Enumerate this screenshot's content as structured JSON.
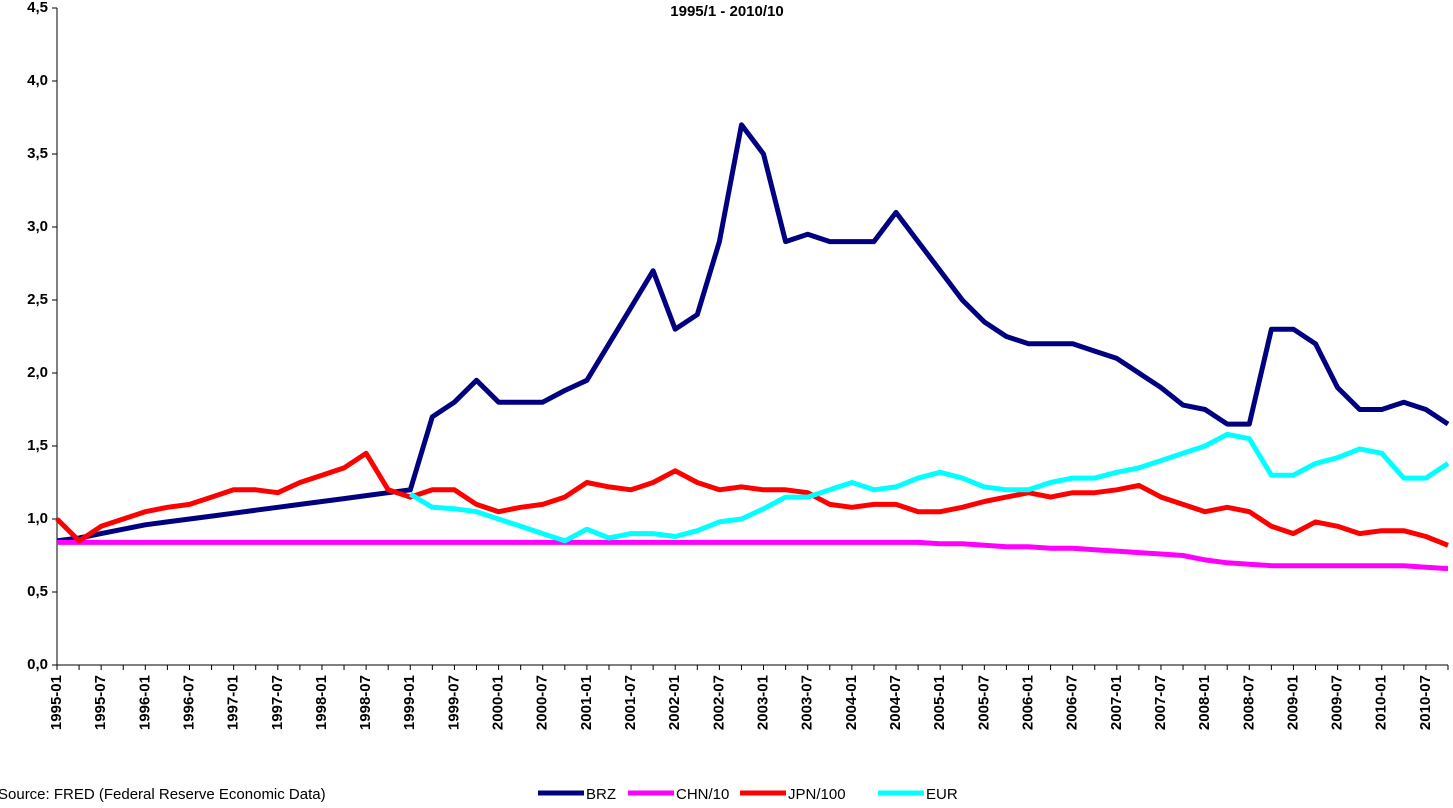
{
  "chart_data": {
    "type": "line",
    "title": "1995/1 - 2010/10",
    "source": "Source: FRED (Federal Reserve Economic Data)",
    "categories": [
      "1995-01",
      null,
      "1995-07",
      null,
      "1996-01",
      null,
      "1996-07",
      null,
      "1997-01",
      null,
      "1997-07",
      null,
      "1998-01",
      null,
      "1998-07",
      null,
      "1999-01",
      null,
      "1999-07",
      null,
      "2000-01",
      null,
      "2000-07",
      null,
      "2001-01",
      null,
      "2001-07",
      null,
      "2002-01",
      null,
      "2002-07",
      null,
      "2003-01",
      null,
      "2003-07",
      null,
      "2004-01",
      null,
      "2004-07",
      null,
      "2005-01",
      null,
      "2005-07",
      null,
      "2006-01",
      null,
      "2006-07",
      null,
      "2007-01",
      null,
      "2007-07",
      null,
      "2008-01",
      null,
      "2008-07",
      null,
      "2009-01",
      null,
      "2009-07",
      null,
      "2010-01",
      null,
      "2010-07",
      null
    ],
    "ylim": [
      0,
      4.5
    ],
    "yticks": [
      {
        "value": 0,
        "label": "0,0"
      },
      {
        "value": 0.5,
        "label": "0,5"
      },
      {
        "value": 1,
        "label": "1,0"
      },
      {
        "value": 1.5,
        "label": "1,5"
      },
      {
        "value": 2,
        "label": "2,0"
      },
      {
        "value": 2.5,
        "label": "2,5"
      },
      {
        "value": 3,
        "label": "3,0"
      },
      {
        "value": 3.5,
        "label": "3,5"
      },
      {
        "value": 4,
        "label": "4,0"
      },
      {
        "value": 4.5,
        "label": "4,5"
      }
    ],
    "series": [
      {
        "name": "BRZ",
        "color": "#000080",
        "values": [
          0.85,
          0.87,
          0.9,
          0.93,
          0.96,
          0.98,
          1.0,
          1.02,
          1.04,
          1.06,
          1.08,
          1.1,
          1.12,
          1.14,
          1.16,
          1.18,
          1.2,
          1.7,
          1.8,
          1.95,
          1.8,
          1.8,
          1.8,
          1.88,
          1.95,
          2.2,
          2.45,
          2.7,
          2.3,
          2.4,
          2.9,
          3.7,
          3.5,
          2.9,
          2.95,
          2.9,
          2.9,
          2.9,
          3.1,
          2.9,
          2.7,
          2.5,
          2.35,
          2.25,
          2.2,
          2.2,
          2.2,
          2.15,
          2.1,
          2.0,
          1.9,
          1.78,
          1.75,
          1.65,
          1.65,
          2.3,
          2.3,
          2.2,
          1.9,
          1.75,
          1.75,
          1.8,
          1.75,
          1.65
        ]
      },
      {
        "name": "CHN/10",
        "color": "#ff00ff",
        "values": [
          0.84,
          0.84,
          0.84,
          0.84,
          0.84,
          0.84,
          0.84,
          0.84,
          0.84,
          0.84,
          0.84,
          0.84,
          0.84,
          0.84,
          0.84,
          0.84,
          0.84,
          0.84,
          0.84,
          0.84,
          0.84,
          0.84,
          0.84,
          0.84,
          0.84,
          0.84,
          0.84,
          0.84,
          0.84,
          0.84,
          0.84,
          0.84,
          0.84,
          0.84,
          0.84,
          0.84,
          0.84,
          0.84,
          0.84,
          0.84,
          0.83,
          0.83,
          0.82,
          0.81,
          0.81,
          0.8,
          0.8,
          0.79,
          0.78,
          0.77,
          0.76,
          0.75,
          0.72,
          0.7,
          0.69,
          0.68,
          0.68,
          0.68,
          0.68,
          0.68,
          0.68,
          0.68,
          0.67,
          0.66
        ]
      },
      {
        "name": "JPN/100",
        "color": "#ff0000",
        "values": [
          1.0,
          0.85,
          0.95,
          1.0,
          1.05,
          1.08,
          1.1,
          1.15,
          1.2,
          1.2,
          1.18,
          1.25,
          1.3,
          1.35,
          1.45,
          1.2,
          1.15,
          1.2,
          1.2,
          1.1,
          1.05,
          1.08,
          1.1,
          1.15,
          1.25,
          1.22,
          1.2,
          1.25,
          1.33,
          1.25,
          1.2,
          1.22,
          1.2,
          1.2,
          1.18,
          1.1,
          1.08,
          1.1,
          1.1,
          1.05,
          1.05,
          1.08,
          1.12,
          1.15,
          1.18,
          1.15,
          1.18,
          1.18,
          1.2,
          1.23,
          1.15,
          1.1,
          1.05,
          1.08,
          1.05,
          0.95,
          0.9,
          0.98,
          0.95,
          0.9,
          0.92,
          0.92,
          0.88,
          0.82
        ]
      },
      {
        "name": "EUR",
        "color": "#00ffff",
        "values": [
          null,
          null,
          null,
          null,
          null,
          null,
          null,
          null,
          null,
          null,
          null,
          null,
          null,
          null,
          null,
          null,
          1.17,
          1.08,
          1.07,
          1.05,
          1.0,
          0.95,
          0.9,
          0.85,
          0.93,
          0.87,
          0.9,
          0.9,
          0.88,
          0.92,
          0.98,
          1.0,
          1.07,
          1.15,
          1.15,
          1.2,
          1.25,
          1.2,
          1.22,
          1.28,
          1.32,
          1.28,
          1.22,
          1.2,
          1.2,
          1.25,
          1.28,
          1.28,
          1.32,
          1.35,
          1.4,
          1.45,
          1.5,
          1.58,
          1.55,
          1.3,
          1.3,
          1.38,
          1.42,
          1.48,
          1.45,
          1.28,
          1.28,
          1.38
        ]
      }
    ]
  }
}
